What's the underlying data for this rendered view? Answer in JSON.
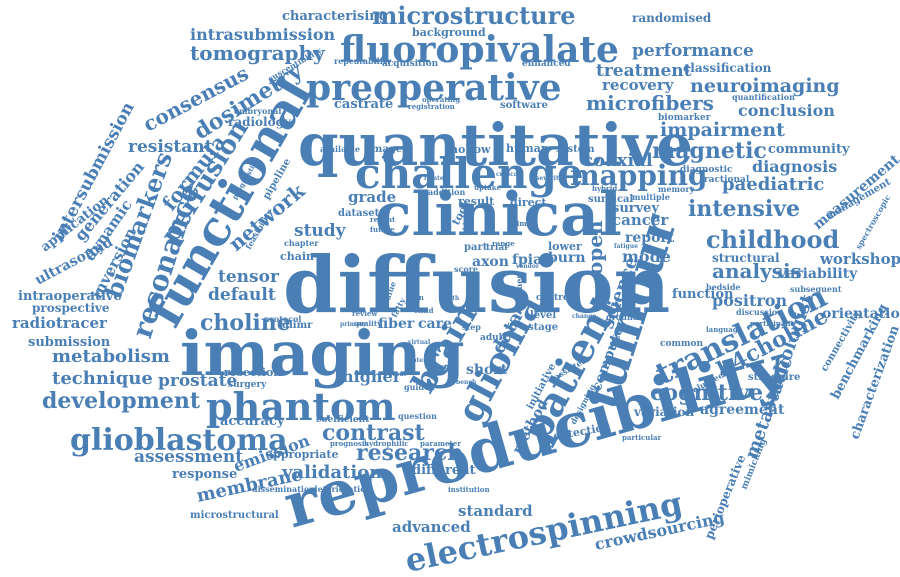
{
  "cloud": {
    "color": "#4a7fb5",
    "words": {
      "w0": "diffusion",
      "w1": "reproducibility",
      "w2": "quantitative",
      "w3": "clinical",
      "w4": "imaging",
      "w5": "functional",
      "w6": "tumour",
      "w7": "challenge",
      "w8": "fluoropivalate",
      "w9": "preoperative",
      "w10": "phantom",
      "w11": "glioblastoma",
      "w12": "glioma",
      "w13": "patient",
      "w14": "electrospinning",
      "w15": "brain",
      "w16": "translation",
      "w17": "microstructure",
      "w18": "mapping",
      "w19": "resonance",
      "w20": "perfusion",
      "w21": "biomarkers",
      "w22": "tomography",
      "w23": "microfibers",
      "w24": "neuroimaging",
      "w25": "magnetic",
      "w26": "intensive",
      "w27": "childhood",
      "w28": "impairment",
      "w29": "h4choline",
      "w30": "cognitive",
      "w31": "metabolism",
      "w32": "development",
      "w33": "contrast",
      "w34": "research",
      "w35": "validation",
      "w36": "choline",
      "w37": "technique",
      "w38": "assessment",
      "w39": "membrane",
      "w40": "analysis",
      "w41": "paediatric",
      "w42": "metastatic",
      "w43": "radiologist",
      "w44": "performance",
      "w45": "treatment",
      "w46": "dosimetry",
      "w47": "consensus",
      "w48": "formula",
      "w49": "network",
      "w50": "intrasubmission",
      "w51": "characterising",
      "w52": "randomised",
      "w53": "background",
      "w54": "recovery",
      "w55": "classification",
      "w56": "conclusion",
      "w57": "castrate",
      "w58": "resistant",
      "w59": "coaxial",
      "w60": "diagnosis",
      "w61": "community",
      "w62": "measurement",
      "w63": "workshop",
      "w64": "variability",
      "w65": "positron",
      "w66": "orientation",
      "w67": "structural",
      "w68": "emission",
      "w69": "prostate",
      "w70": "standard",
      "w71": "advanced",
      "w72": "crowdsourcing",
      "w73": "intersubmission",
      "w74": "generation",
      "w75": "application",
      "w76": "dynamic",
      "w77": "ultrasound",
      "w78": "inversion",
      "w79": "intraoperative",
      "w80": "prospective",
      "w81": "radiotracer",
      "w82": "submission",
      "w83": "default",
      "w84": "tensor",
      "w85": "study",
      "w86": "grade",
      "w87": "science",
      "w88": "computer",
      "w89": "survey",
      "w90": "report",
      "w91": "cancer",
      "w92": "function",
      "w93": "mode",
      "w94": "axon",
      "w95": "fpia",
      "w96": "burn",
      "w97": "data",
      "w98": "open",
      "w99": "higher",
      "w100": "short",
      "w101": "accuracy",
      "w102": "different",
      "w103": "agreement",
      "w104": "variation",
      "w105": "method",
      "w106": "detection",
      "w107": "response",
      "w108": "appropriate",
      "w109": "fiber",
      "w110": "care",
      "w111": "resection",
      "w112": "surgery",
      "w113": "microstructural",
      "w114": "dissemination",
      "w115": "deterioration",
      "w116": "benchmarking",
      "w117": "characterization",
      "w118": "connectivity",
      "w119": "management",
      "w120": "spectroscopic",
      "w121": "perioperative",
      "w122": "mimicking",
      "w123": "volunteer",
      "w124": "structure",
      "w125": "common",
      "w126": "radiology",
      "w127": "embryonal",
      "w128": "susceptibility",
      "w129": "repeatability",
      "w130": "acquisition",
      "w131": "enhanced",
      "w132": "software",
      "w133": "operating",
      "w134": "registration",
      "w135": "quantification",
      "w136": "biomarker",
      "w137": "diagnostic",
      "w138": "fractional",
      "w139": "memory",
      "w140": "multiple",
      "w141": "surgical",
      "w142": "hybrid",
      "w143": "image",
      "w144": "hollow",
      "w145": "human",
      "w146": "system",
      "w147": "result",
      "w148": "addition",
      "w149": "direct",
      "w150": "dataset",
      "w151": "repeat",
      "w152": "future",
      "w153": "chapter",
      "w154": "chain",
      "w155": "part",
      "w156": "trial",
      "w157": "range",
      "w158": "lower",
      "w159": "score",
      "w160": "control",
      "w161": "level",
      "w162": "stage",
      "w163": "review",
      "w164": "quality",
      "w165": "glimr",
      "w166": "protocol",
      "w167": "feasibility",
      "w168": "pipeline",
      "w169": "prognostic",
      "w170": "available",
      "w171": "coefficient",
      "w172": "prognosis",
      "w173": "hydrophilic",
      "w174": "parameter",
      "w175": "question",
      "w176": "institution",
      "w177": "assisted",
      "w178": "initiative",
      "w179": "designing",
      "w180": "particular",
      "w181": "language",
      "w182": "discussion",
      "w183": "participant",
      "w184": "bedside",
      "w185": "subsequent",
      "w186": "ground",
      "w187": "scanner",
      "w188": "adult",
      "w189": "step",
      "w190": "guided",
      "w191": "output",
      "w192": "tool",
      "w193": "prime",
      "w194": "vendor",
      "w195": "primary",
      "w196": "biology",
      "w197": "severity",
      "w198": "virtual",
      "w199": "fatty",
      "w200": "scan",
      "w201": "value",
      "w202": "change",
      "w203": "fatigue",
      "w204": "bench",
      "w205": "critical",
      "w206": "related",
      "w207": "interim",
      "w208": "relevant",
      "w209": "uptake",
      "w210": "child",
      "w211": "path"
    }
  }
}
